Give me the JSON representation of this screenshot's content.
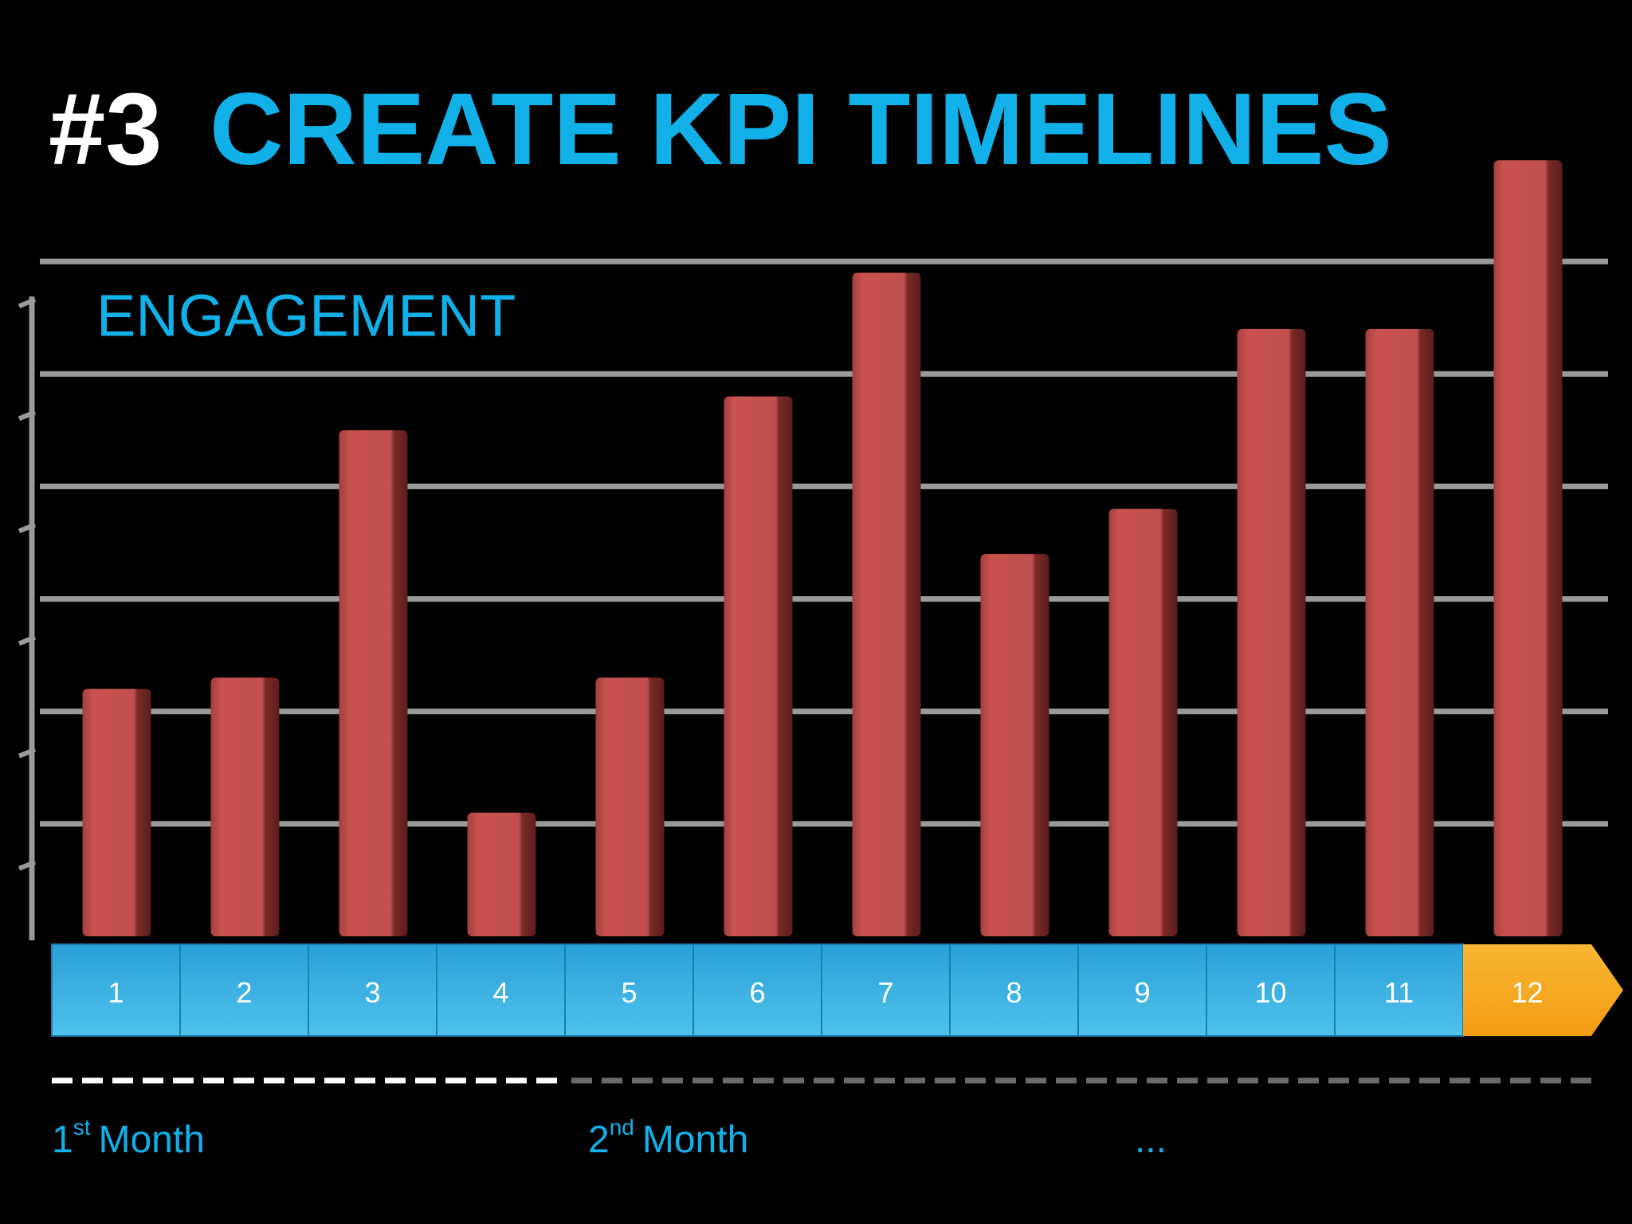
{
  "slide": {
    "title_number": "#3",
    "title": "CREATE KPI TIMELINES"
  },
  "chart_data": {
    "type": "bar",
    "title": "ENGAGEMENT",
    "categories": [
      "1",
      "2",
      "3",
      "4",
      "5",
      "6",
      "7",
      "8",
      "9",
      "10",
      "11",
      "12"
    ],
    "values": [
      2.2,
      2.3,
      4.5,
      1.1,
      2.3,
      4.8,
      5.9,
      3.4,
      3.8,
      5.4,
      5.4,
      6.9
    ],
    "color": "#c0504d",
    "ylim": [
      0,
      7
    ],
    "yticks": [
      1,
      2,
      3,
      4,
      5,
      6
    ],
    "grid": true,
    "timeline_color": "#4fc3ec",
    "highlight_color": "#f39c12"
  },
  "periods": [
    {
      "number": "1",
      "suffix": "st",
      "text": "Month"
    },
    {
      "number": "2",
      "suffix": "nd",
      "text": "Month"
    },
    {
      "text": "..."
    }
  ]
}
